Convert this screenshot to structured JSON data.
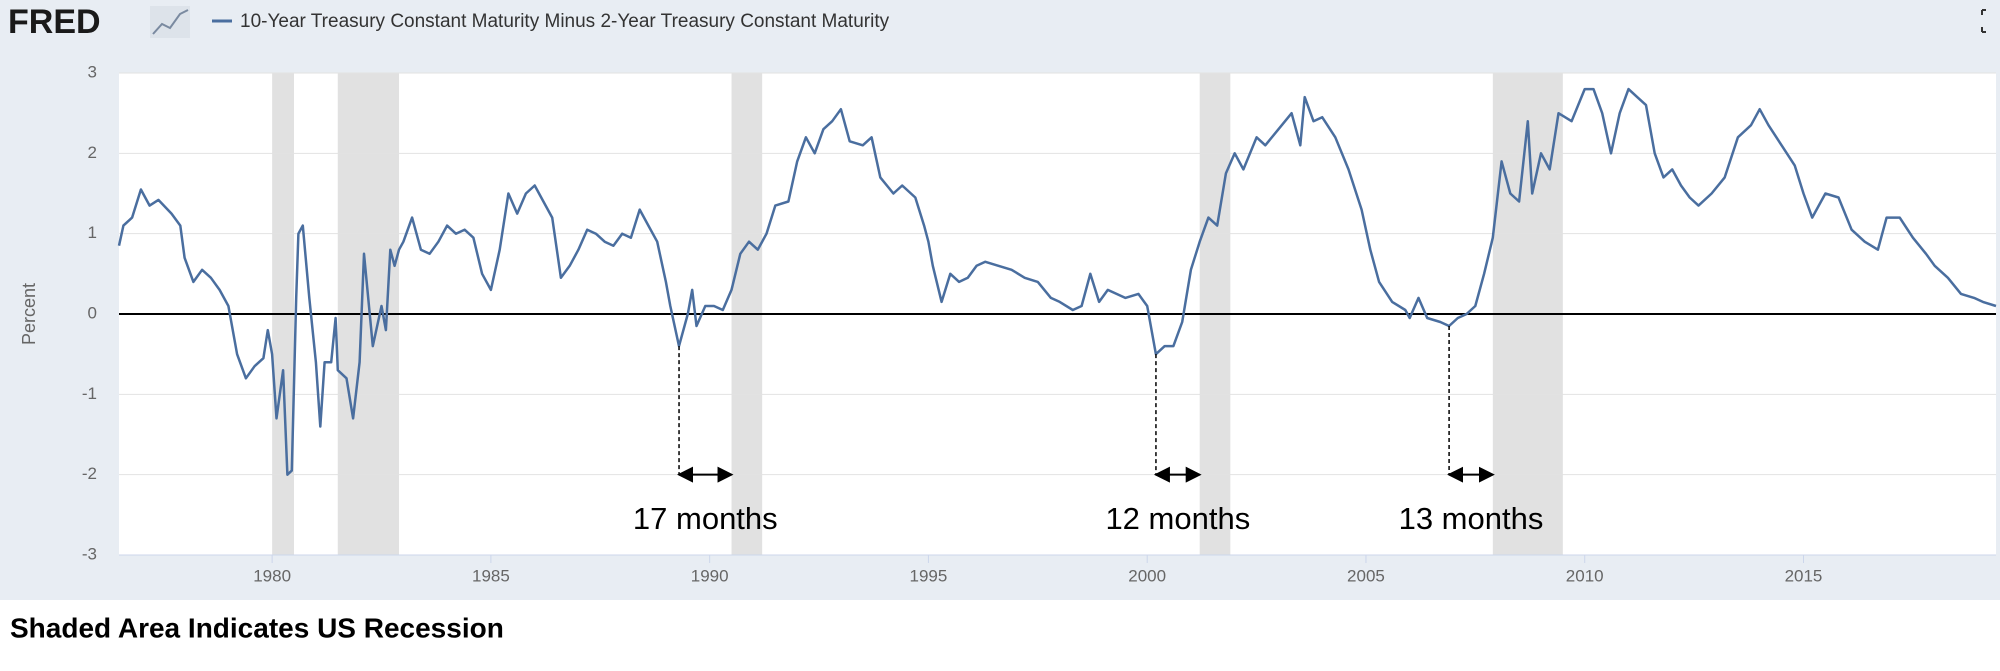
{
  "header": {
    "logo": "FRED"
  },
  "footer": "Shaded Area Indicates US Recession",
  "chart_data": {
    "type": "line",
    "series": [
      {
        "name": "10-Year Treasury Constant Maturity Minus 2-Year Treasury Constant Maturity",
        "color": "#4a6e9f",
        "x": [
          1976.5,
          1976.6,
          1976.8,
          1977.0,
          1977.2,
          1977.4,
          1977.7,
          1977.9,
          1978.0,
          1978.2,
          1978.4,
          1978.6,
          1978.8,
          1979.0,
          1979.2,
          1979.4,
          1979.6,
          1979.8,
          1979.9,
          1980.0,
          1980.1,
          1980.25,
          1980.35,
          1980.45,
          1980.55,
          1980.6,
          1980.7,
          1980.85,
          1981.0,
          1981.1,
          1981.2,
          1981.35,
          1981.45,
          1981.5,
          1981.7,
          1981.85,
          1982.0,
          1982.1,
          1982.3,
          1982.5,
          1982.6,
          1982.7,
          1982.8,
          1982.9,
          1983.0,
          1983.2,
          1983.4,
          1983.6,
          1983.8,
          1984.0,
          1984.2,
          1984.4,
          1984.6,
          1984.8,
          1985.0,
          1985.2,
          1985.4,
          1985.6,
          1985.8,
          1986.0,
          1986.2,
          1986.4,
          1986.6,
          1986.8,
          1987.0,
          1987.2,
          1987.4,
          1987.6,
          1987.8,
          1988.0,
          1988.2,
          1988.4,
          1988.6,
          1988.8,
          1989.0,
          1989.1,
          1989.3,
          1989.5,
          1989.6,
          1989.7,
          1989.9,
          1990.1,
          1990.3,
          1990.5,
          1990.7,
          1990.9,
          1991.1,
          1991.3,
          1991.5,
          1991.8,
          1992.0,
          1992.2,
          1992.4,
          1992.6,
          1992.8,
          1993.0,
          1993.2,
          1993.5,
          1993.7,
          1993.9,
          1994.2,
          1994.4,
          1994.7,
          1994.9,
          1995.0,
          1995.1,
          1995.3,
          1995.5,
          1995.7,
          1995.9,
          1996.1,
          1996.3,
          1996.6,
          1996.9,
          1997.2,
          1997.5,
          1997.8,
          1998.0,
          1998.3,
          1998.5,
          1998.7,
          1998.9,
          1999.1,
          1999.5,
          1999.8,
          2000.0,
          2000.2,
          2000.4,
          2000.6,
          2000.8,
          2001.0,
          2001.2,
          2001.4,
          2001.6,
          2001.8,
          2002.0,
          2002.2,
          2002.5,
          2002.7,
          2003.0,
          2003.3,
          2003.5,
          2003.6,
          2003.8,
          2004.0,
          2004.3,
          2004.6,
          2004.9,
          2005.1,
          2005.3,
          2005.6,
          2005.9,
          2006.0,
          2006.2,
          2006.4,
          2006.7,
          2006.9,
          2007.1,
          2007.3,
          2007.5,
          2007.7,
          2007.9,
          2008.1,
          2008.3,
          2008.5,
          2008.7,
          2008.8,
          2009.0,
          2009.2,
          2009.4,
          2009.7,
          2010.0,
          2010.2,
          2010.4,
          2010.6,
          2010.8,
          2011.0,
          2011.2,
          2011.4,
          2011.6,
          2011.8,
          2012.0,
          2012.2,
          2012.4,
          2012.6,
          2012.9,
          2013.2,
          2013.5,
          2013.8,
          2014.0,
          2014.2,
          2014.5,
          2014.8,
          2015.0,
          2015.2,
          2015.5,
          2015.8,
          2016.1,
          2016.4,
          2016.7,
          2016.9,
          2017.2,
          2017.5,
          2017.8,
          2018.0,
          2018.3,
          2018.6,
          2018.9,
          2019.1,
          2019.4
        ],
        "values": [
          0.85,
          1.1,
          1.2,
          1.55,
          1.35,
          1.42,
          1.25,
          1.1,
          0.7,
          0.4,
          0.55,
          0.45,
          0.3,
          0.1,
          -0.5,
          -0.8,
          -0.65,
          -0.55,
          -0.2,
          -0.5,
          -1.3,
          -0.7,
          -2.0,
          -1.95,
          0.2,
          1.0,
          1.1,
          0.2,
          -0.6,
          -1.4,
          -0.6,
          -0.6,
          -0.05,
          -0.7,
          -0.8,
          -1.3,
          -0.6,
          0.75,
          -0.4,
          0.1,
          -0.2,
          0.8,
          0.6,
          0.8,
          0.9,
          1.2,
          0.8,
          0.75,
          0.9,
          1.1,
          1.0,
          1.05,
          0.95,
          0.5,
          0.3,
          0.8,
          1.5,
          1.25,
          1.5,
          1.6,
          1.4,
          1.2,
          0.45,
          0.6,
          0.8,
          1.05,
          1.0,
          0.9,
          0.85,
          1.0,
          0.95,
          1.3,
          1.1,
          0.9,
          0.4,
          0.1,
          -0.4,
          0.0,
          0.3,
          -0.15,
          0.1,
          0.1,
          0.05,
          0.3,
          0.75,
          0.9,
          0.8,
          1.0,
          1.35,
          1.4,
          1.9,
          2.2,
          2.0,
          2.3,
          2.4,
          2.55,
          2.15,
          2.1,
          2.2,
          1.7,
          1.5,
          1.6,
          1.45,
          1.1,
          0.9,
          0.6,
          0.15,
          0.5,
          0.4,
          0.45,
          0.6,
          0.65,
          0.6,
          0.55,
          0.45,
          0.4,
          0.2,
          0.15,
          0.05,
          0.1,
          0.5,
          0.15,
          0.3,
          0.2,
          0.25,
          0.1,
          -0.5,
          -0.4,
          -0.4,
          -0.1,
          0.55,
          0.9,
          1.2,
          1.1,
          1.75,
          2.0,
          1.8,
          2.2,
          2.1,
          2.3,
          2.5,
          2.1,
          2.7,
          2.4,
          2.45,
          2.2,
          1.8,
          1.3,
          0.8,
          0.4,
          0.15,
          0.05,
          -0.05,
          0.2,
          -0.05,
          -0.1,
          -0.15,
          -0.05,
          0.0,
          0.1,
          0.5,
          0.95,
          1.9,
          1.5,
          1.4,
          2.4,
          1.5,
          2.0,
          1.8,
          2.5,
          2.4,
          2.8,
          2.8,
          2.5,
          2.0,
          2.5,
          2.8,
          2.7,
          2.6,
          2.0,
          1.7,
          1.8,
          1.6,
          1.45,
          1.35,
          1.5,
          1.7,
          2.2,
          2.35,
          2.55,
          2.35,
          2.1,
          1.85,
          1.5,
          1.2,
          1.5,
          1.45,
          1.05,
          0.9,
          0.8,
          1.2,
          1.2,
          0.95,
          0.75,
          0.6,
          0.45,
          0.25,
          0.2,
          0.15,
          0.1
        ]
      }
    ],
    "recessions": [
      [
        1980.0,
        1980.5
      ],
      [
        1981.5,
        1982.9
      ],
      [
        1990.5,
        1991.2
      ],
      [
        2001.2,
        2001.9
      ],
      [
        2007.9,
        2009.5
      ]
    ],
    "annotations": [
      {
        "text": "17 months",
        "from": 1989.3,
        "to": 1990.5,
        "y": -2
      },
      {
        "text": "12 months",
        "from": 2000.2,
        "to": 2001.2,
        "y": -2
      },
      {
        "text": "13 months",
        "from": 2006.9,
        "to": 2007.9,
        "y": -2
      }
    ],
    "ylabel": "Percent",
    "xlim": [
      1976.5,
      2019.4
    ],
    "xticks": [
      1980,
      1985,
      1990,
      1995,
      2000,
      2005,
      2010,
      2015
    ],
    "ylim": [
      -3,
      3
    ],
    "yticks": [
      -3,
      -2,
      -1,
      0,
      1,
      2,
      3
    ],
    "grid": true,
    "zero_line": true
  }
}
